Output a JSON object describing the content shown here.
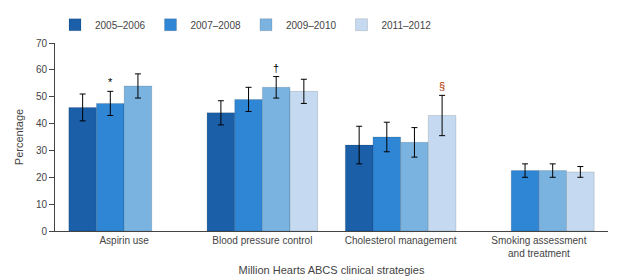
{
  "chart_data": {
    "type": "bar",
    "xlabel": "Million Hearts ABCS clinical strategies",
    "ylabel": "Percentage",
    "categories": [
      "Aspirin use",
      "Blood pressure control",
      "Cholesterol management",
      "Smoking assessment\nand treatment"
    ],
    "series": [
      {
        "name": "2005–2006",
        "color": "#1a5fa8",
        "values": [
          46.0,
          44.0,
          32.0,
          null
        ],
        "errors": [
          5.0,
          4.5,
          7.0,
          null
        ]
      },
      {
        "name": "2007–2008",
        "color": "#2e86d4",
        "values": [
          47.5,
          49.0,
          35.0,
          22.5
        ],
        "errors": [
          4.5,
          4.5,
          5.5,
          2.5
        ]
      },
      {
        "name": "2009–2010",
        "color": "#7ab3e0",
        "values": [
          54.0,
          53.5,
          33.0,
          22.5
        ],
        "errors": [
          4.5,
          4.0,
          5.5,
          2.5
        ]
      },
      {
        "name": "2011–2012",
        "color": "#c5daf0",
        "values": [
          null,
          52.0,
          43.0,
          22.0
        ],
        "errors": [
          null,
          4.5,
          7.5,
          2.0
        ]
      }
    ],
    "annotations": [
      {
        "category": "Aspirin use",
        "series": "2007–2008",
        "text": "*",
        "color": "black"
      },
      {
        "category": "Blood pressure control",
        "series": "2009–2010",
        "text": "†",
        "color": "black"
      },
      {
        "category": "Cholesterol management",
        "series": "2011–2012",
        "text": "§",
        "color": "#b03000"
      }
    ],
    "ylim": [
      0,
      70
    ],
    "yticks": [
      0,
      10,
      20,
      30,
      40,
      50,
      60,
      70
    ],
    "grid": false,
    "legend": "upper left"
  }
}
